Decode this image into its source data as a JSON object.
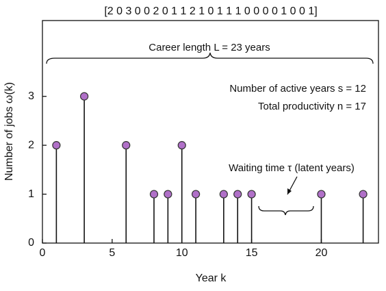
{
  "chart_data": {
    "type": "stem",
    "sequence_label": "[2 0 3 0 0 2 0 1 1 2 1 0 1 1 1 0 0 0 0 1 0 0 1]",
    "x": [
      1,
      3,
      6,
      8,
      9,
      10,
      11,
      13,
      14,
      15,
      20,
      23
    ],
    "values": [
      2,
      3,
      2,
      1,
      1,
      2,
      1,
      1,
      1,
      1,
      1,
      1
    ],
    "color": "#b070c8",
    "xlim": [
      0,
      24.1
    ],
    "ylim": [
      0,
      4.55
    ],
    "xticks": [
      0,
      5,
      10,
      15,
      20
    ],
    "yticks": [
      0,
      1,
      2,
      3
    ],
    "x_label": "Year k",
    "y_label": "Number of jobs ω(k)",
    "annotations": [
      "Career length L = 23 years",
      "Number of active years s = 12",
      "Total productivity n = 17",
      "Waiting time τ (latent years)"
    ]
  }
}
